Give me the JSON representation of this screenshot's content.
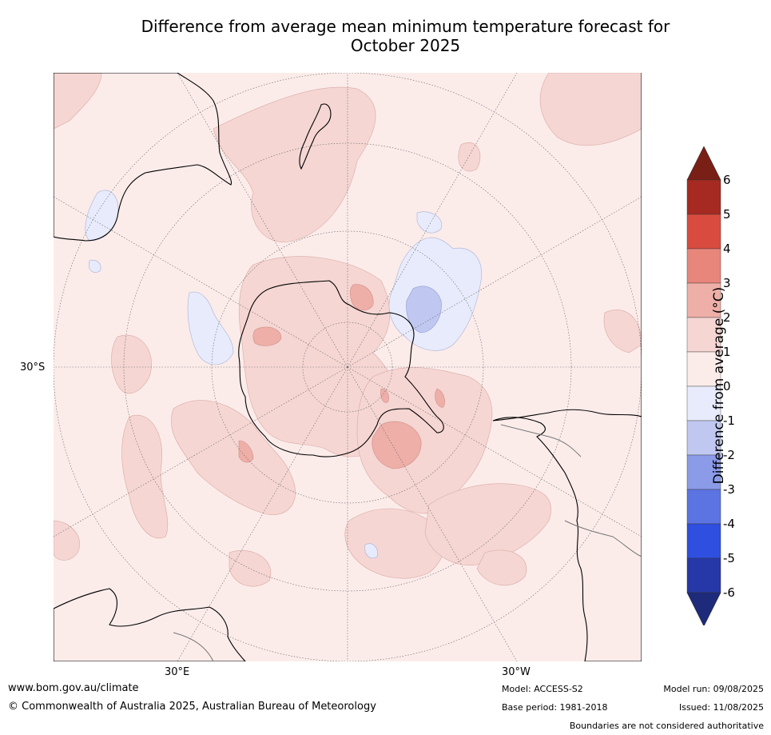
{
  "title_line1": "Difference from average mean minimum temperature forecast for",
  "title_line2": "October 2025",
  "labels": {
    "lat_30s": "30°S",
    "lon_30e": "30°E",
    "lon_30w": "30°W"
  },
  "colorbar": {
    "title": "Difference from average ($^\\circ$C)",
    "title_display": "Difference from average (°C)",
    "ticks": [
      "6",
      "5",
      "4",
      "3",
      "2",
      "1",
      "0",
      "-1",
      "-2",
      "-3",
      "-4",
      "-5",
      "-6"
    ],
    "colors": {
      "above6": "#7a1f16",
      "5to6": "#a62a21",
      "4to5": "#d94b3f",
      "3to4": "#e8867c",
      "2to3": "#eeafa8",
      "1to2": "#f5d6d3",
      "0to1": "#fbecea",
      "m1to0": "#e8ebfb",
      "m2tom1": "#c0c8f1",
      "m3tom2": "#8c9be8",
      "m4tom3": "#5c74e2",
      "m5tom4": "#2f4fe0",
      "m6tom5": "#2638a8",
      "below_m6": "#1e2a7a"
    }
  },
  "footer": {
    "website": "www.bom.gov.au/climate",
    "copyright": "© Commonwealth of Australia 2025, Australian Bureau of Meteorology",
    "model": "Model: ACCESS-S2",
    "base_period": "Base period: 1981-2018",
    "model_run": "Model run: 09/08/2025",
    "issued": "Issued: 11/08/2025",
    "disclaimer": "Boundaries are not considered authoritative"
  }
}
